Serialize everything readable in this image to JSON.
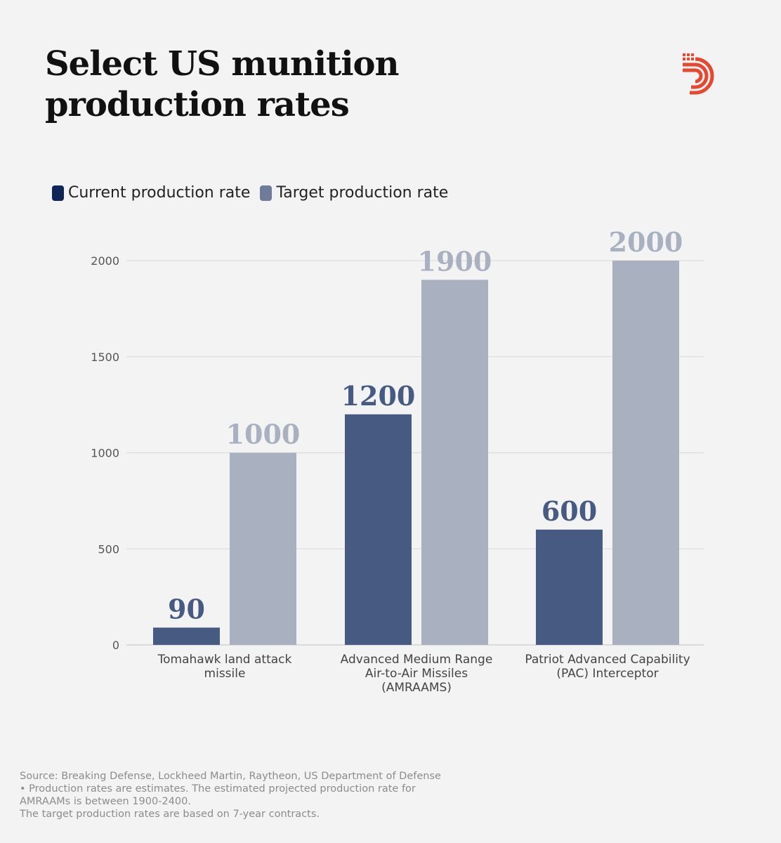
{
  "title_lines": [
    "Select US munition",
    "production rates"
  ],
  "logo": {
    "icon": "brand-logo-icon",
    "color": "#e8472f"
  },
  "colors": {
    "current": "#475a82",
    "target": "#a9b1c1",
    "legend_current": "#0f2457",
    "legend_target": "#6e7c9a"
  },
  "chart_data": {
    "type": "bar",
    "title": "Select US munition production rates",
    "categories": [
      [
        "Tomahawk land attack",
        "missile"
      ],
      [
        "Advanced Medium Range",
        "Air-to-Air Missiles",
        "(AMRAAMS)"
      ],
      [
        "Patriot Advanced Capability",
        "(PAC) Interceptor"
      ]
    ],
    "series": [
      {
        "name": "Current production rate",
        "values": [
          90,
          1200,
          600
        ]
      },
      {
        "name": "Target production rate",
        "values": [
          1000,
          1900,
          2000
        ]
      }
    ],
    "yticks": [
      0,
      500,
      1000,
      1500,
      2000
    ],
    "ylim": [
      0,
      2000
    ],
    "grid": true,
    "legend": "top-left",
    "xlabel": "",
    "ylabel": ""
  },
  "footer": {
    "lines": [
      "Source: Breaking Defense, Lockheed Martin, Raytheon, US Department of Defense",
      "• Production rates are estimates. The estimated projected production rate for",
      "AMRAAMs is between 1900-2400.",
      "The target production rates are based on 7-year contracts."
    ]
  }
}
